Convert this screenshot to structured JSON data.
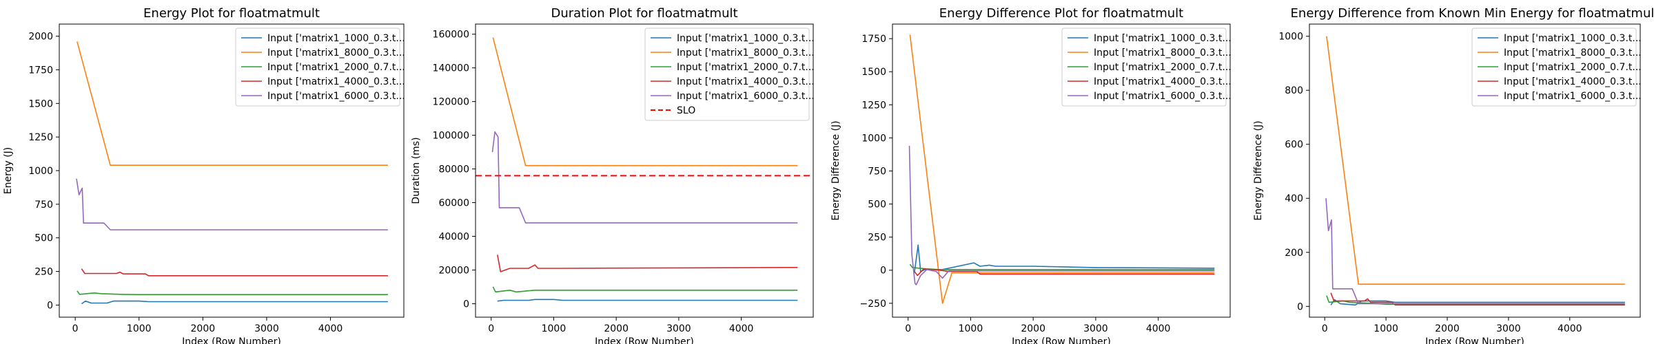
{
  "colors": {
    "blue": "#1f77b4",
    "orange": "#ff7f0e",
    "green": "#2ca02c",
    "red": "#d62728",
    "purple": "#9467bd",
    "slo": "#ff0000"
  },
  "chart_data": [
    {
      "type": "line",
      "title": "Energy Plot for floatmatmult",
      "xlabel": "Index (Row Number)",
      "ylabel": "Energy (J)",
      "xlim": [
        -250,
        5150
      ],
      "ylim": [
        -90,
        2090
      ],
      "xticks": [
        0,
        1000,
        2000,
        3000,
        4000
      ],
      "yticks": [
        0,
        250,
        500,
        750,
        1000,
        1250,
        1500,
        1750,
        2000
      ],
      "grid": false,
      "legend": "top-right",
      "series": [
        {
          "name": "Input ['matrix1_1000_0.3.t...",
          "color": "blue",
          "points": [
            [
              100,
              10
            ],
            [
              160,
              30
            ],
            [
              250,
              15
            ],
            [
              500,
              15
            ],
            [
              600,
              30
            ],
            [
              1000,
              30
            ],
            [
              1150,
              25
            ],
            [
              4900,
              25
            ]
          ]
        },
        {
          "name": "Input ['matrix1_8000_0.3.t...",
          "color": "orange",
          "points": [
            [
              30,
              1960
            ],
            [
              550,
              1040
            ],
            [
              4900,
              1040
            ]
          ]
        },
        {
          "name": "Input ['matrix1_2000_0.7.t...",
          "color": "green",
          "points": [
            [
              30,
              105
            ],
            [
              70,
              80
            ],
            [
              300,
              90
            ],
            [
              400,
              85
            ],
            [
              700,
              80
            ],
            [
              1000,
              78
            ],
            [
              4900,
              78
            ]
          ]
        },
        {
          "name": "Input ['matrix1_4000_0.3.t...",
          "color": "red",
          "points": [
            [
              100,
              270
            ],
            [
              150,
              235
            ],
            [
              650,
              235
            ],
            [
              700,
              245
            ],
            [
              750,
              232
            ],
            [
              1100,
              232
            ],
            [
              1150,
              218
            ],
            [
              4900,
              218
            ]
          ]
        },
        {
          "name": "Input ['matrix1_6000_0.3.t...",
          "color": "purple",
          "points": [
            [
              20,
              940
            ],
            [
              60,
              820
            ],
            [
              110,
              870
            ],
            [
              130,
              610
            ],
            [
              450,
              610
            ],
            [
              550,
              560
            ],
            [
              4900,
              560
            ]
          ]
        }
      ]
    },
    {
      "type": "line",
      "title": "Duration Plot for floatmatmult",
      "xlabel": "Index (Row Number)",
      "ylabel": "Duration (ms)",
      "xlim": [
        -250,
        5150
      ],
      "ylim": [
        -8000,
        166000
      ],
      "xticks": [
        0,
        1000,
        2000,
        3000,
        4000
      ],
      "yticks": [
        0,
        20000,
        40000,
        60000,
        80000,
        100000,
        120000,
        140000,
        160000
      ],
      "grid": false,
      "legend": "top-right",
      "series": [
        {
          "name": "Input ['matrix1_1000_0.3.t...",
          "color": "blue",
          "points": [
            [
              100,
              1500
            ],
            [
              200,
              2000
            ],
            [
              600,
              2000
            ],
            [
              700,
              2500
            ],
            [
              1000,
              2500
            ],
            [
              1150,
              2000
            ],
            [
              4900,
              2000
            ]
          ]
        },
        {
          "name": "Input ['matrix1_8000_0.3.t...",
          "color": "orange",
          "points": [
            [
              30,
              158000
            ],
            [
              550,
              82000
            ],
            [
              4900,
              82000
            ]
          ]
        },
        {
          "name": "Input ['matrix1_2000_0.7.t...",
          "color": "green",
          "points": [
            [
              30,
              10000
            ],
            [
              70,
              7000
            ],
            [
              300,
              8000
            ],
            [
              400,
              7000
            ],
            [
              700,
              8000
            ],
            [
              4900,
              8000
            ]
          ]
        },
        {
          "name": "Input ['matrix1_4000_0.3.t...",
          "color": "red",
          "points": [
            [
              100,
              29000
            ],
            [
              150,
              19000
            ],
            [
              300,
              21000
            ],
            [
              600,
              21000
            ],
            [
              700,
              23000
            ],
            [
              750,
              21000
            ],
            [
              1100,
              21000
            ],
            [
              4900,
              21500
            ]
          ]
        },
        {
          "name": "Input ['matrix1_6000_0.3.t...",
          "color": "purple",
          "points": [
            [
              20,
              90000
            ],
            [
              60,
              102000
            ],
            [
              110,
              99000
            ],
            [
              130,
              57000
            ],
            [
              450,
              57000
            ],
            [
              550,
              48000
            ],
            [
              4900,
              48000
            ]
          ]
        }
      ],
      "slo": {
        "label": "SLO",
        "value": 76000
      }
    },
    {
      "type": "line",
      "title": "Energy Difference Plot for floatmatmult",
      "xlabel": "Index (Row Number)",
      "ylabel": "Energy Difference (J)",
      "xlim": [
        -250,
        5150
      ],
      "ylim": [
        -355,
        1860
      ],
      "xticks": [
        0,
        1000,
        2000,
        3000,
        4000
      ],
      "yticks": [
        -250,
        0,
        250,
        500,
        750,
        1000,
        1250,
        1500,
        1750
      ],
      "grid": false,
      "legend": "top-right",
      "series": [
        {
          "name": "Input ['matrix1_1000_0.3.t...",
          "color": "blue",
          "points": [
            [
              100,
              -20
            ],
            [
              160,
              190
            ],
            [
              200,
              -10
            ],
            [
              300,
              10
            ],
            [
              500,
              0
            ],
            [
              700,
              20
            ],
            [
              900,
              40
            ],
            [
              1050,
              55
            ],
            [
              1150,
              30
            ],
            [
              1300,
              38
            ],
            [
              1400,
              30
            ],
            [
              2000,
              30
            ],
            [
              2500,
              25
            ],
            [
              3000,
              20
            ],
            [
              4900,
              15
            ]
          ]
        },
        {
          "name": "Input ['matrix1_8000_0.3.t...",
          "color": "orange",
          "points": [
            [
              30,
              1780
            ],
            [
              550,
              -250
            ],
            [
              700,
              -20
            ],
            [
              4900,
              -20
            ]
          ]
        },
        {
          "name": "Input ['matrix1_2000_0.7.t...",
          "color": "green",
          "points": [
            [
              30,
              45
            ],
            [
              70,
              20
            ],
            [
              300,
              10
            ],
            [
              500,
              5
            ],
            [
              1000,
              5
            ],
            [
              4900,
              5
            ]
          ]
        },
        {
          "name": "Input ['matrix1_4000_0.3.t...",
          "color": "red",
          "points": [
            [
              100,
              -10
            ],
            [
              150,
              -40
            ],
            [
              250,
              10
            ],
            [
              500,
              0
            ],
            [
              650,
              -10
            ],
            [
              1100,
              -10
            ],
            [
              1150,
              -30
            ],
            [
              4900,
              -30
            ]
          ]
        },
        {
          "name": "Input ['matrix1_6000_0.3.t...",
          "color": "purple",
          "points": [
            [
              20,
              940
            ],
            [
              60,
              120
            ],
            [
              110,
              -100
            ],
            [
              130,
              -110
            ],
            [
              200,
              -40
            ],
            [
              300,
              5
            ],
            [
              450,
              -10
            ],
            [
              550,
              -60
            ],
            [
              650,
              -5
            ],
            [
              4900,
              -5
            ]
          ]
        }
      ]
    },
    {
      "type": "line",
      "title": "Energy Difference from Known Min Energy for floatmatmult",
      "xlabel": "Index (Row Number)",
      "ylabel": "Energy Difference (J)",
      "xlim": [
        -250,
        5150
      ],
      "ylim": [
        -40,
        1045
      ],
      "xticks": [
        0,
        1000,
        2000,
        3000,
        4000
      ],
      "yticks": [
        0,
        200,
        400,
        600,
        800,
        1000
      ],
      "grid": false,
      "legend": "top-right",
      "series": [
        {
          "name": "Input ['matrix1_1000_0.3.t...",
          "color": "blue",
          "points": [
            [
              100,
              5
            ],
            [
              160,
              25
            ],
            [
              250,
              10
            ],
            [
              500,
              5
            ],
            [
              600,
              20
            ],
            [
              1000,
              20
            ],
            [
              1150,
              15
            ],
            [
              4900,
              15
            ]
          ]
        },
        {
          "name": "Input ['matrix1_8000_0.3.t...",
          "color": "orange",
          "points": [
            [
              30,
              1000
            ],
            [
              550,
              82
            ],
            [
              4900,
              82
            ]
          ]
        },
        {
          "name": "Input ['matrix1_2000_0.7.t...",
          "color": "green",
          "points": [
            [
              30,
              40
            ],
            [
              70,
              15
            ],
            [
              300,
              20
            ],
            [
              400,
              15
            ],
            [
              700,
              12
            ],
            [
              1000,
              8
            ],
            [
              4900,
              8
            ]
          ]
        },
        {
          "name": "Input ['matrix1_4000_0.3.t...",
          "color": "red",
          "points": [
            [
              100,
              50
            ],
            [
              150,
              20
            ],
            [
              650,
              20
            ],
            [
              700,
              28
            ],
            [
              750,
              15
            ],
            [
              1100,
              15
            ],
            [
              1150,
              5
            ],
            [
              4900,
              5
            ]
          ]
        },
        {
          "name": "Input ['matrix1_6000_0.3.t...",
          "color": "purple",
          "points": [
            [
              20,
              400
            ],
            [
              60,
              280
            ],
            [
              110,
              320
            ],
            [
              130,
              65
            ],
            [
              450,
              65
            ],
            [
              550,
              10
            ],
            [
              4900,
              10
            ]
          ]
        }
      ]
    }
  ]
}
